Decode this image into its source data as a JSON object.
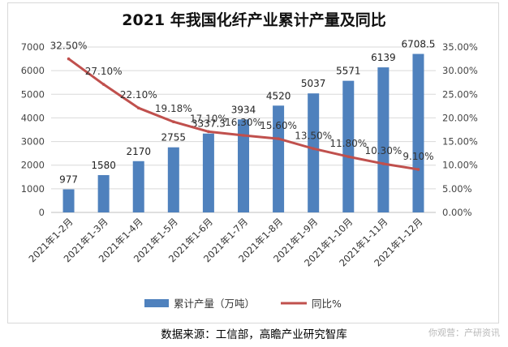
{
  "chart_data": {
    "type": "bar+line",
    "title": "2021 年我国化纤产业累计产量及同比",
    "categories": [
      "2021年1-2月",
      "2021年1-3月",
      "2021年1-4月",
      "2021年1-5月",
      "2021年1-6月",
      "2021年1-7月",
      "2021年1-8月",
      "2021年1-9月",
      "2021年1-10月",
      "2021年1-11月",
      "2021年1-12月"
    ],
    "series": [
      {
        "name": "累计产量（万吨）",
        "type": "bar",
        "axis": "left",
        "color": "#4f81bd",
        "values": [
          977,
          1580,
          2170,
          2755,
          3337.3,
          3934,
          4520,
          5037,
          5571,
          6139,
          6708.5
        ],
        "labels": [
          "977",
          "1580",
          "2170",
          "2755",
          "3337.3",
          "3934",
          "4520",
          "5037",
          "5571",
          "6139",
          "6708.5"
        ]
      },
      {
        "name": "同比%",
        "type": "line",
        "axis": "right",
        "color": "#c0504d",
        "values": [
          32.5,
          27.1,
          22.1,
          19.18,
          17.1,
          16.3,
          15.6,
          13.5,
          11.8,
          10.3,
          9.1
        ],
        "labels": [
          "32.50%",
          "27.10%",
          "22.10%",
          "19.18%",
          "17.10%",
          "16.30%",
          "15.60%",
          "13.50%",
          "11.80%",
          "10.30%",
          "9.10%"
        ]
      }
    ],
    "y_left": {
      "min": 0,
      "max": 7000,
      "ticks": [
        "0",
        "1000",
        "2000",
        "3000",
        "4000",
        "5000",
        "6000",
        "7000"
      ]
    },
    "y_right": {
      "min": 0,
      "max": 35,
      "ticks": [
        "0.00%",
        "5.00%",
        "10.00%",
        "15.00%",
        "20.00%",
        "25.00%",
        "30.00%",
        "35.00%"
      ]
    },
    "grid": true,
    "legend_position": "bottom"
  },
  "source": "数据来源：工信部，高瞻产业研究智库",
  "watermark": "你观营：产研资讯"
}
